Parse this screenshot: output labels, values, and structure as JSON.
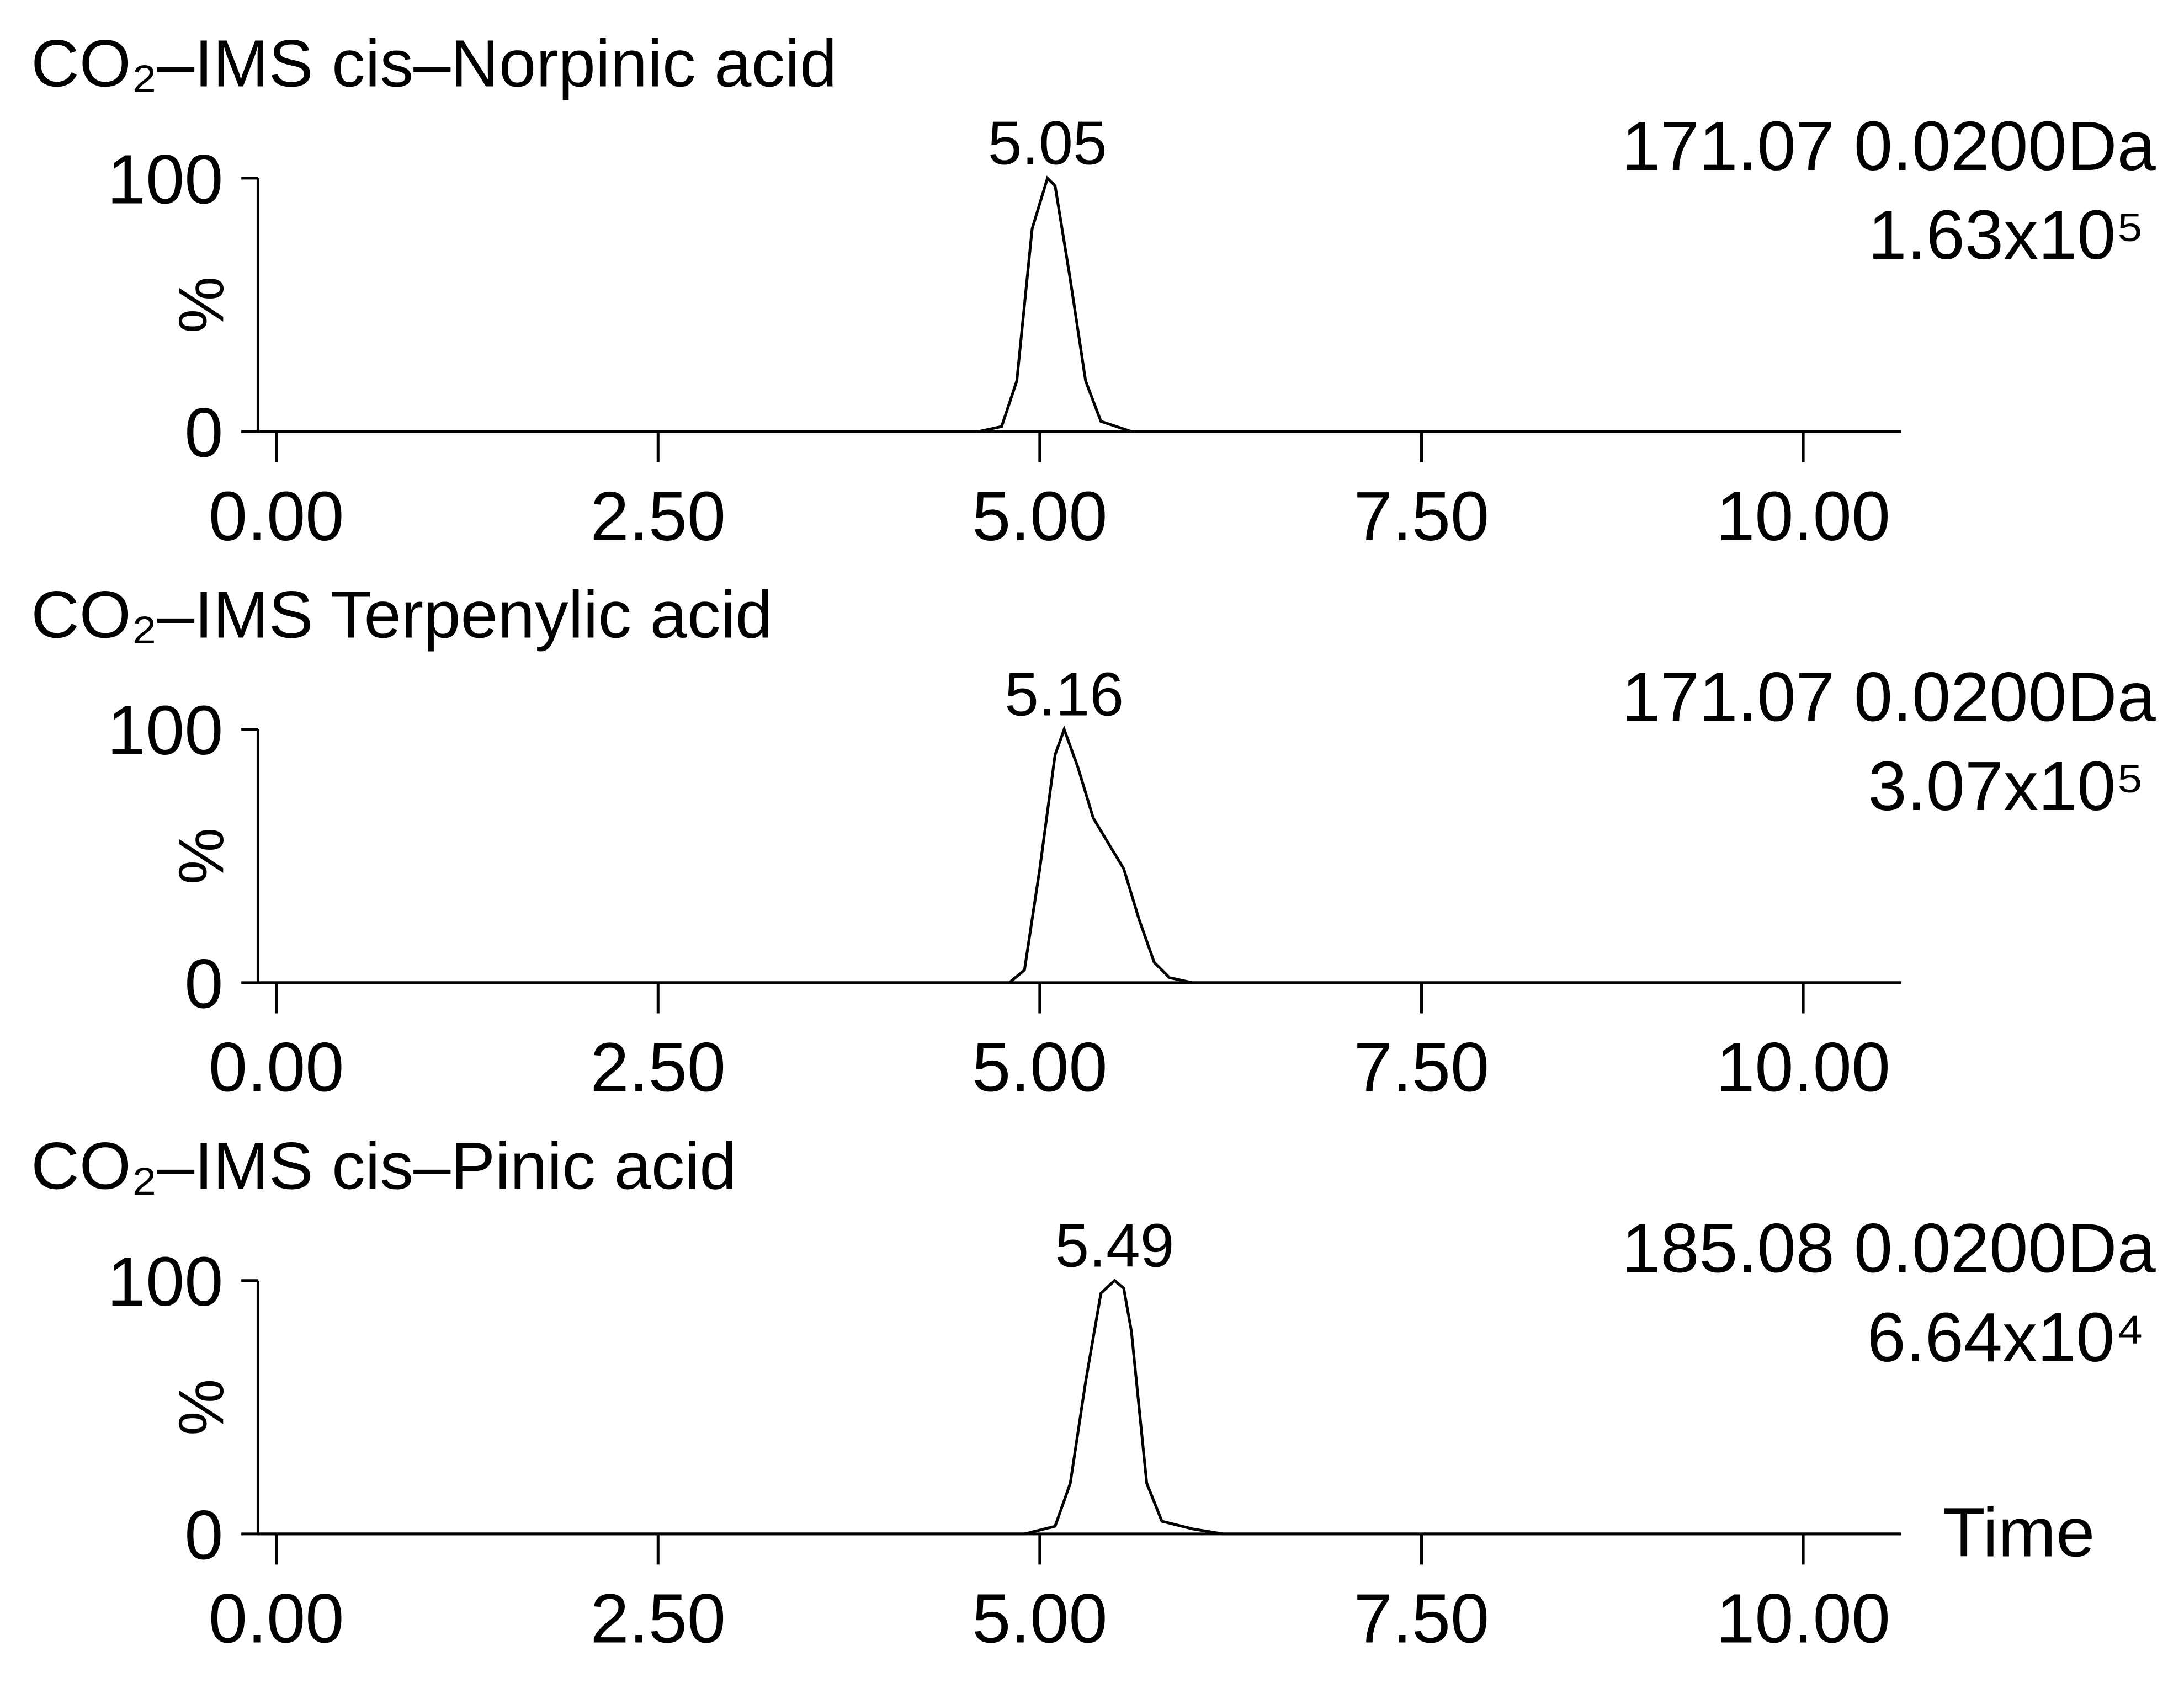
{
  "chart_data": [
    {
      "type": "line",
      "title": "CO₂–IMS cis–Norpinic acid",
      "ylabel": "%",
      "mass_label": "171.07 0.0200Da",
      "intensity_label": "1.63x10⁵",
      "peak_label": 5.05,
      "color": "#000000",
      "x": [
        -0.12,
        4.6,
        4.75,
        4.85,
        4.95,
        5.05,
        5.1,
        5.2,
        5.3,
        5.4,
        5.6,
        10.64
      ],
      "values": [
        0,
        0,
        2,
        20,
        80,
        100,
        97,
        60,
        20,
        4,
        0,
        0
      ],
      "xlim": [
        -0.12,
        10.64
      ],
      "ylim": [
        0,
        100
      ],
      "xticks": [
        {
          "value": 0,
          "label": "0.00"
        },
        {
          "value": 2.5,
          "label": "2.50"
        },
        {
          "value": 5,
          "label": "5.00"
        },
        {
          "value": 7.5,
          "label": "7.50"
        },
        {
          "value": 10,
          "label": "10.00"
        }
      ],
      "yticks": [
        0,
        100
      ]
    },
    {
      "type": "line",
      "title": "CO₂–IMS Terpenylic acid",
      "ylabel": "%",
      "mass_label": "171.07 0.0200Da",
      "intensity_label": "3.07x10⁵",
      "peak_label": 5.16,
      "color": "#000000",
      "x": [
        -0.12,
        4.8,
        4.9,
        5.0,
        5.1,
        5.16,
        5.25,
        5.35,
        5.45,
        5.55,
        5.65,
        5.75,
        5.85,
        6.0,
        10.64
      ],
      "values": [
        0,
        0,
        5,
        45,
        90,
        100,
        85,
        65,
        55,
        45,
        25,
        8,
        2,
        0,
        0
      ],
      "xlim": [
        -0.12,
        10.64
      ],
      "ylim": [
        0,
        100
      ],
      "xticks": [
        {
          "value": 0,
          "label": "0.00"
        },
        {
          "value": 2.5,
          "label": "2.50"
        },
        {
          "value": 5,
          "label": "5.00"
        },
        {
          "value": 7.5,
          "label": "7.50"
        },
        {
          "value": 10,
          "label": "10.00"
        }
      ],
      "yticks": [
        0,
        100
      ]
    },
    {
      "type": "line",
      "title": "CO₂–IMS cis–Pinic acid",
      "ylabel": "%",
      "xlabel": "Time",
      "mass_label": "185.08 0.0200Da",
      "intensity_label": "6.64x10⁴",
      "peak_label": 5.49,
      "color": "#000000",
      "x": [
        -0.12,
        4.9,
        5.1,
        5.2,
        5.3,
        5.4,
        5.49,
        5.55,
        5.6,
        5.7,
        5.8,
        6.0,
        6.2,
        10.64
      ],
      "values": [
        0,
        0,
        3,
        20,
        60,
        95,
        100,
        97,
        80,
        20,
        5,
        2,
        0,
        0
      ],
      "xlim": [
        -0.12,
        10.64
      ],
      "ylim": [
        0,
        100
      ],
      "xticks": [
        {
          "value": 0,
          "label": "0.00"
        },
        {
          "value": 2.5,
          "label": "2.50"
        },
        {
          "value": 5,
          "label": "5.00"
        },
        {
          "value": 7.5,
          "label": "7.50"
        },
        {
          "value": 10,
          "label": "10.00"
        }
      ],
      "yticks": [
        0,
        100
      ]
    }
  ]
}
